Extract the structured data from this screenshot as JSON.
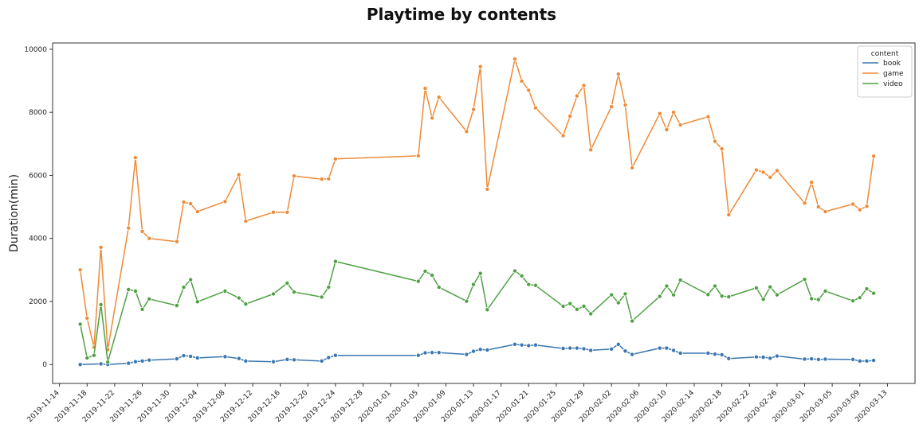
{
  "chart_data": {
    "type": "line",
    "title": "Playtime by contents",
    "xlabel": "",
    "ylabel": "Duration(min)",
    "xlim": [
      "2019-11-13",
      "2020-03-17"
    ],
    "ylim": [
      -600,
      10200
    ],
    "grid": false,
    "legend": {
      "title": "content",
      "placement": "top-right"
    },
    "x_ticks": [
      "2019-11-14",
      "2019-11-18",
      "2019-11-22",
      "2019-11-26",
      "2019-11-30",
      "2019-12-04",
      "2019-12-08",
      "2019-12-12",
      "2019-12-16",
      "2019-12-20",
      "2019-12-24",
      "2019-12-28",
      "2020-01-01",
      "2020-01-05",
      "2020-01-09",
      "2020-01-13",
      "2020-01-17",
      "2020-01-21",
      "2020-01-25",
      "2020-01-29",
      "2020-02-02",
      "2020-02-06",
      "2020-02-10",
      "2020-02-14",
      "2020-02-18",
      "2020-02-22",
      "2020-02-26",
      "2020-03-01",
      "2020-03-05",
      "2020-03-09",
      "2020-03-13"
    ],
    "y_ticks": [
      0,
      2000,
      4000,
      6000,
      8000,
      10000
    ],
    "series": [
      {
        "name": "book",
        "color": "#3a76af",
        "points": [
          [
            "2019-11-17",
            0
          ],
          [
            "2019-11-20",
            20
          ],
          [
            "2019-11-21",
            0
          ],
          [
            "2019-11-24",
            40
          ],
          [
            "2019-11-25",
            90
          ],
          [
            "2019-11-26",
            110
          ],
          [
            "2019-11-27",
            140
          ],
          [
            "2019-12-01",
            180
          ],
          [
            "2019-12-02",
            280
          ],
          [
            "2019-12-03",
            260
          ],
          [
            "2019-12-04",
            210
          ],
          [
            "2019-12-08",
            250
          ],
          [
            "2019-12-10",
            190
          ],
          [
            "2019-12-11",
            110
          ],
          [
            "2019-12-15",
            90
          ],
          [
            "2019-12-17",
            160
          ],
          [
            "2019-12-18",
            150
          ],
          [
            "2019-12-22",
            110
          ],
          [
            "2019-12-23",
            220
          ],
          [
            "2019-12-24",
            290
          ],
          [
            "2020-01-05",
            290
          ],
          [
            "2020-01-06",
            370
          ],
          [
            "2020-01-07",
            380
          ],
          [
            "2020-01-08",
            380
          ],
          [
            "2020-01-12",
            320
          ],
          [
            "2020-01-13",
            420
          ],
          [
            "2020-01-14",
            480
          ],
          [
            "2020-01-15",
            460
          ],
          [
            "2020-01-19",
            640
          ],
          [
            "2020-01-20",
            620
          ],
          [
            "2020-01-21",
            600
          ],
          [
            "2020-01-22",
            620
          ],
          [
            "2020-01-26",
            510
          ],
          [
            "2020-01-27",
            520
          ],
          [
            "2020-01-28",
            520
          ],
          [
            "2020-01-29",
            500
          ],
          [
            "2020-01-30",
            450
          ],
          [
            "2020-02-02",
            490
          ],
          [
            "2020-02-03",
            640
          ],
          [
            "2020-02-04",
            430
          ],
          [
            "2020-02-05",
            320
          ],
          [
            "2020-02-09",
            520
          ],
          [
            "2020-02-10",
            520
          ],
          [
            "2020-02-11",
            450
          ],
          [
            "2020-02-12",
            360
          ],
          [
            "2020-02-16",
            360
          ],
          [
            "2020-02-17",
            330
          ],
          [
            "2020-02-18",
            310
          ],
          [
            "2020-02-19",
            190
          ],
          [
            "2020-02-23",
            240
          ],
          [
            "2020-02-24",
            230
          ],
          [
            "2020-02-25",
            200
          ],
          [
            "2020-02-26",
            270
          ],
          [
            "2020-03-01",
            170
          ],
          [
            "2020-03-02",
            180
          ],
          [
            "2020-03-03",
            160
          ],
          [
            "2020-03-04",
            170
          ],
          [
            "2020-03-08",
            160
          ],
          [
            "2020-03-09",
            110
          ],
          [
            "2020-03-10",
            110
          ],
          [
            "2020-03-11",
            130
          ]
        ]
      },
      {
        "name": "game",
        "color": "#ef8a36",
        "points": [
          [
            "2019-11-17",
            3000
          ],
          [
            "2019-11-18",
            1470
          ],
          [
            "2019-11-19",
            550
          ],
          [
            "2019-11-20",
            3720
          ],
          [
            "2019-11-21",
            470
          ],
          [
            "2019-11-24",
            4330
          ],
          [
            "2019-11-25",
            6560
          ],
          [
            "2019-11-26",
            4220
          ],
          [
            "2019-11-27",
            4000
          ],
          [
            "2019-12-01",
            3900
          ],
          [
            "2019-12-02",
            5150
          ],
          [
            "2019-12-03",
            5100
          ],
          [
            "2019-12-04",
            4850
          ],
          [
            "2019-12-08",
            5170
          ],
          [
            "2019-12-10",
            6020
          ],
          [
            "2019-12-11",
            4550
          ],
          [
            "2019-12-15",
            4830
          ],
          [
            "2019-12-17",
            4830
          ],
          [
            "2019-12-18",
            5980
          ],
          [
            "2019-12-22",
            5880
          ],
          [
            "2019-12-23",
            5890
          ],
          [
            "2019-12-24",
            6520
          ],
          [
            "2020-01-05",
            6620
          ],
          [
            "2020-01-06",
            8760
          ],
          [
            "2020-01-07",
            7820
          ],
          [
            "2020-01-08",
            8480
          ],
          [
            "2020-01-12",
            7390
          ],
          [
            "2020-01-13",
            8090
          ],
          [
            "2020-01-14",
            9450
          ],
          [
            "2020-01-15",
            5560
          ],
          [
            "2020-01-19",
            9690
          ],
          [
            "2020-01-20",
            8990
          ],
          [
            "2020-01-21",
            8700
          ],
          [
            "2020-01-22",
            8140
          ],
          [
            "2020-01-26",
            7260
          ],
          [
            "2020-01-27",
            7880
          ],
          [
            "2020-01-28",
            8520
          ],
          [
            "2020-01-29",
            8850
          ],
          [
            "2020-01-30",
            6810
          ],
          [
            "2020-02-02",
            8180
          ],
          [
            "2020-02-03",
            9210
          ],
          [
            "2020-02-04",
            8230
          ],
          [
            "2020-02-05",
            6240
          ],
          [
            "2020-02-09",
            7960
          ],
          [
            "2020-02-10",
            7450
          ],
          [
            "2020-02-11",
            8000
          ],
          [
            "2020-02-12",
            7600
          ],
          [
            "2020-02-16",
            7860
          ],
          [
            "2020-02-17",
            7080
          ],
          [
            "2020-02-18",
            6840
          ],
          [
            "2020-02-19",
            4750
          ],
          [
            "2020-02-23",
            6170
          ],
          [
            "2020-02-24",
            6100
          ],
          [
            "2020-02-25",
            5940
          ],
          [
            "2020-02-26",
            6150
          ],
          [
            "2020-03-01",
            5120
          ],
          [
            "2020-03-02",
            5780
          ],
          [
            "2020-03-03",
            5000
          ],
          [
            "2020-03-04",
            4850
          ],
          [
            "2020-03-08",
            5090
          ],
          [
            "2020-03-09",
            4910
          ],
          [
            "2020-03-10",
            5020
          ],
          [
            "2020-03-11",
            6610
          ]
        ]
      },
      {
        "name": "video",
        "color": "#4ea143",
        "points": [
          [
            "2019-11-17",
            1280
          ],
          [
            "2019-11-18",
            210
          ],
          [
            "2019-11-19",
            290
          ],
          [
            "2019-11-20",
            1900
          ],
          [
            "2019-11-21",
            80
          ],
          [
            "2019-11-24",
            2380
          ],
          [
            "2019-11-25",
            2330
          ],
          [
            "2019-11-26",
            1750
          ],
          [
            "2019-11-27",
            2080
          ],
          [
            "2019-12-01",
            1870
          ],
          [
            "2019-12-02",
            2450
          ],
          [
            "2019-12-03",
            2690
          ],
          [
            "2019-12-04",
            1990
          ],
          [
            "2019-12-08",
            2330
          ],
          [
            "2019-12-10",
            2110
          ],
          [
            "2019-12-11",
            1920
          ],
          [
            "2019-12-15",
            2240
          ],
          [
            "2019-12-17",
            2580
          ],
          [
            "2019-12-18",
            2300
          ],
          [
            "2019-12-22",
            2140
          ],
          [
            "2019-12-23",
            2450
          ],
          [
            "2019-12-24",
            3270
          ],
          [
            "2020-01-05",
            2640
          ],
          [
            "2020-01-06",
            2960
          ],
          [
            "2020-01-07",
            2830
          ],
          [
            "2020-01-08",
            2450
          ],
          [
            "2020-01-12",
            2010
          ],
          [
            "2020-01-13",
            2540
          ],
          [
            "2020-01-14",
            2890
          ],
          [
            "2020-01-15",
            1740
          ],
          [
            "2020-01-19",
            2970
          ],
          [
            "2020-01-20",
            2810
          ],
          [
            "2020-01-21",
            2540
          ],
          [
            "2020-01-22",
            2510
          ],
          [
            "2020-01-26",
            1850
          ],
          [
            "2020-01-27",
            1930
          ],
          [
            "2020-01-28",
            1750
          ],
          [
            "2020-01-29",
            1850
          ],
          [
            "2020-01-30",
            1610
          ],
          [
            "2020-02-02",
            2210
          ],
          [
            "2020-02-03",
            1960
          ],
          [
            "2020-02-04",
            2240
          ],
          [
            "2020-02-05",
            1380
          ],
          [
            "2020-02-09",
            2160
          ],
          [
            "2020-02-10",
            2490
          ],
          [
            "2020-02-11",
            2210
          ],
          [
            "2020-02-12",
            2680
          ],
          [
            "2020-02-16",
            2220
          ],
          [
            "2020-02-17",
            2490
          ],
          [
            "2020-02-18",
            2170
          ],
          [
            "2020-02-19",
            2150
          ],
          [
            "2020-02-23",
            2430
          ],
          [
            "2020-02-24",
            2070
          ],
          [
            "2020-02-25",
            2460
          ],
          [
            "2020-02-26",
            2210
          ],
          [
            "2020-03-01",
            2700
          ],
          [
            "2020-03-02",
            2090
          ],
          [
            "2020-03-03",
            2060
          ],
          [
            "2020-03-04",
            2330
          ],
          [
            "2020-03-08",
            2020
          ],
          [
            "2020-03-09",
            2120
          ],
          [
            "2020-03-10",
            2400
          ],
          [
            "2020-03-11",
            2260
          ]
        ]
      }
    ]
  }
}
